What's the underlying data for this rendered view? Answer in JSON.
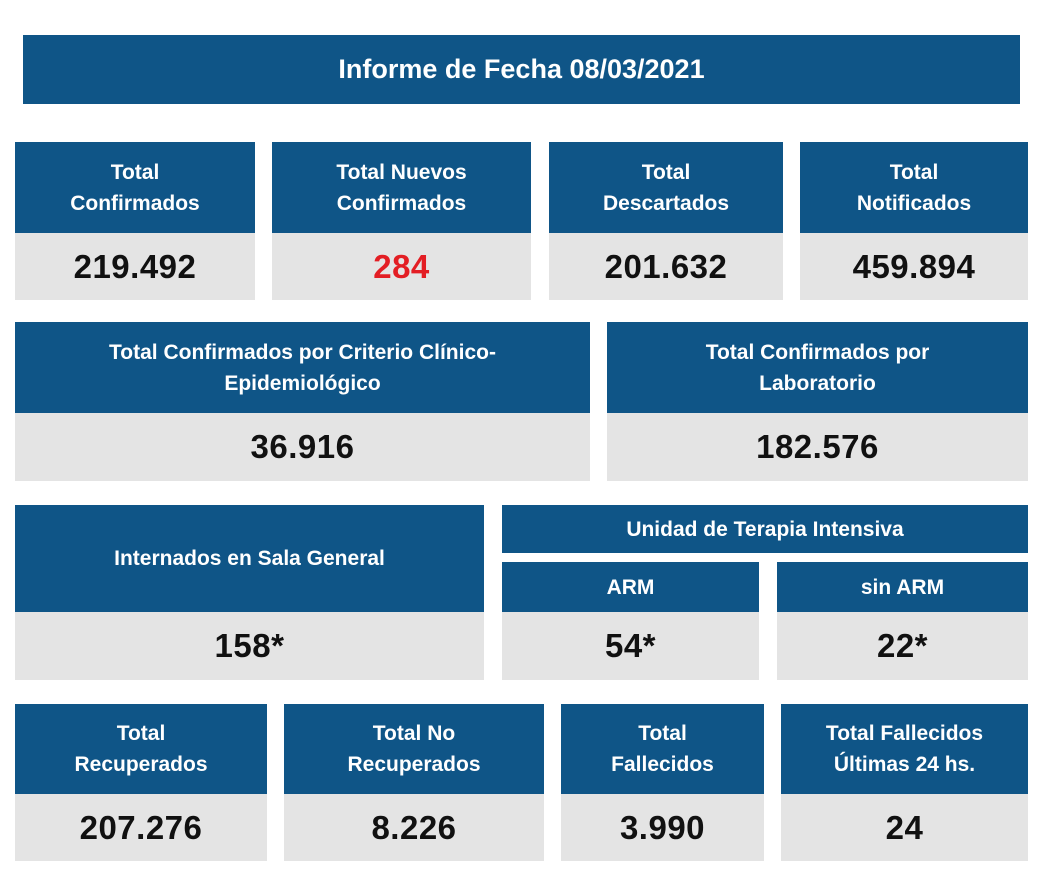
{
  "title": "Informe de Fecha 08/03/2021",
  "row1": {
    "total_confirmados": {
      "label": "Total\nConfirmados",
      "value": "219.492"
    },
    "total_nuevos_confirmados": {
      "label": "Total Nuevos\nConfirmados",
      "value": "284"
    },
    "total_descartados": {
      "label": "Total\nDescartados",
      "value": "201.632"
    },
    "total_notificados": {
      "label": "Total\nNotificados",
      "value": "459.894"
    }
  },
  "row2": {
    "criterio_clinico": {
      "label": "Total Confirmados por Criterio Clínico-\nEpidemiológico",
      "value": "36.916"
    },
    "laboratorio": {
      "label": "Total Confirmados por\nLaboratorio",
      "value": "182.576"
    }
  },
  "row3": {
    "sala_general": {
      "label": "Internados en Sala General",
      "value": "158*"
    },
    "uti_title": "Unidad de Terapia Intensiva",
    "arm": {
      "label": "ARM",
      "value": "54*"
    },
    "sin_arm": {
      "label": "sin ARM",
      "value": "22*"
    }
  },
  "row4": {
    "recuperados": {
      "label": "Total\nRecuperados",
      "value": "207.276"
    },
    "no_recuperados": {
      "label": "Total No\nRecuperados",
      "value": "8.226"
    },
    "fallecidos": {
      "label": "Total\nFallecidos",
      "value": "3.990"
    },
    "fallecidos_24": {
      "label": "Total Fallecidos\nÚltimas 24 hs.",
      "value": "24"
    }
  },
  "colors": {
    "header_blue": "#0f5587",
    "value_bg": "#e4e4e4",
    "highlight_red": "#e31e24"
  }
}
